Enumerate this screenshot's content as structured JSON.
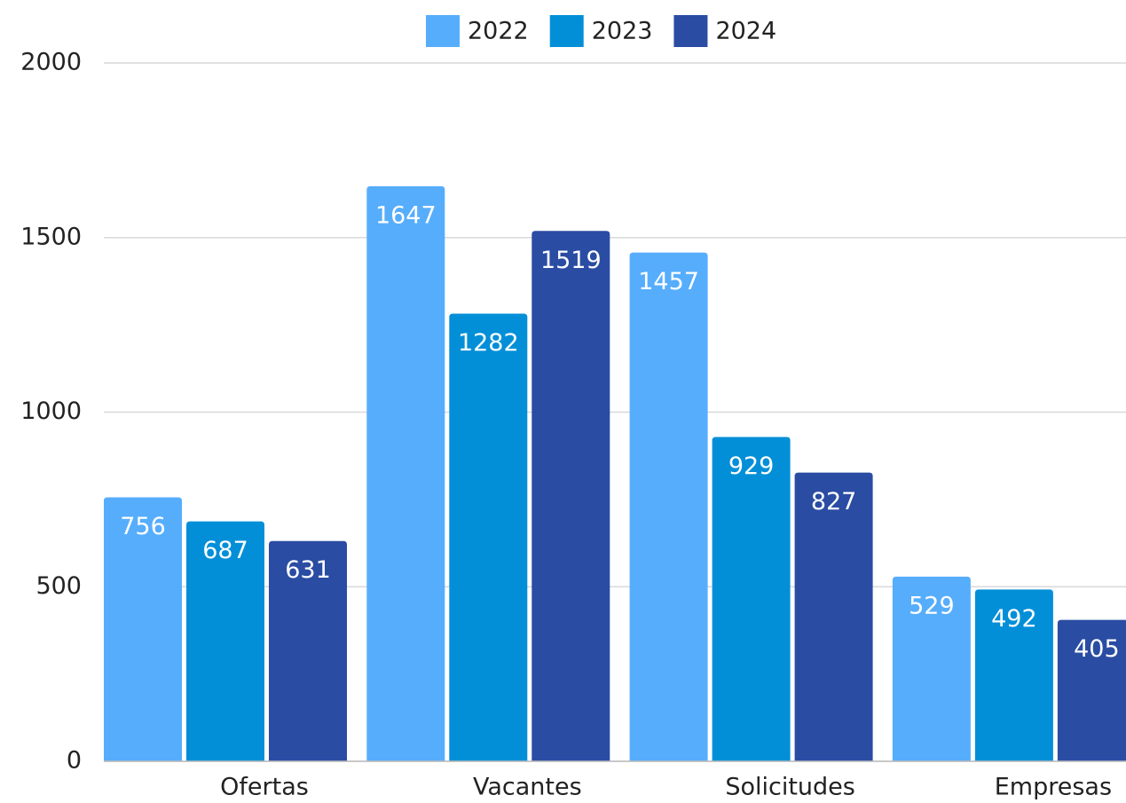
{
  "chart_data": {
    "type": "bar",
    "categories": [
      "Ofertas",
      "Vacantes",
      "Solicitudes",
      "Empresas"
    ],
    "series": [
      {
        "name": "2022",
        "color": "#56adfc",
        "values": [
          756,
          1647,
          1457,
          529
        ]
      },
      {
        "name": "2023",
        "color": "#038fd8",
        "values": [
          687,
          1282,
          929,
          492
        ]
      },
      {
        "name": "2024",
        "color": "#2a4ca3",
        "values": [
          631,
          1519,
          827,
          405
        ]
      }
    ],
    "ylim": [
      0,
      2000
    ],
    "yticks": [
      0,
      500,
      1000,
      1500,
      2000
    ],
    "grid": true,
    "legend": "top"
  }
}
